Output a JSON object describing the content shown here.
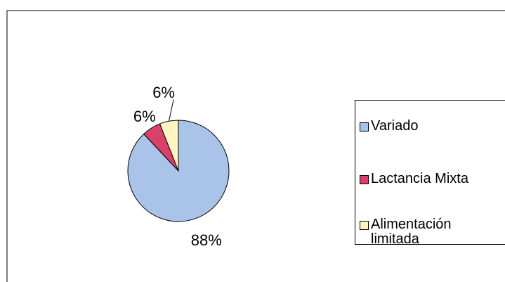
{
  "chart_data": {
    "type": "pie",
    "categories": [
      "Variado",
      "Lactancia Mixta",
      "Alimentación limitada"
    ],
    "values": [
      88,
      6,
      6
    ],
    "value_labels": [
      "88%",
      "6%",
      "6%"
    ],
    "colors": [
      "#a9c4e8",
      "#d9416a",
      "#fff5c0"
    ],
    "legend": "right"
  }
}
